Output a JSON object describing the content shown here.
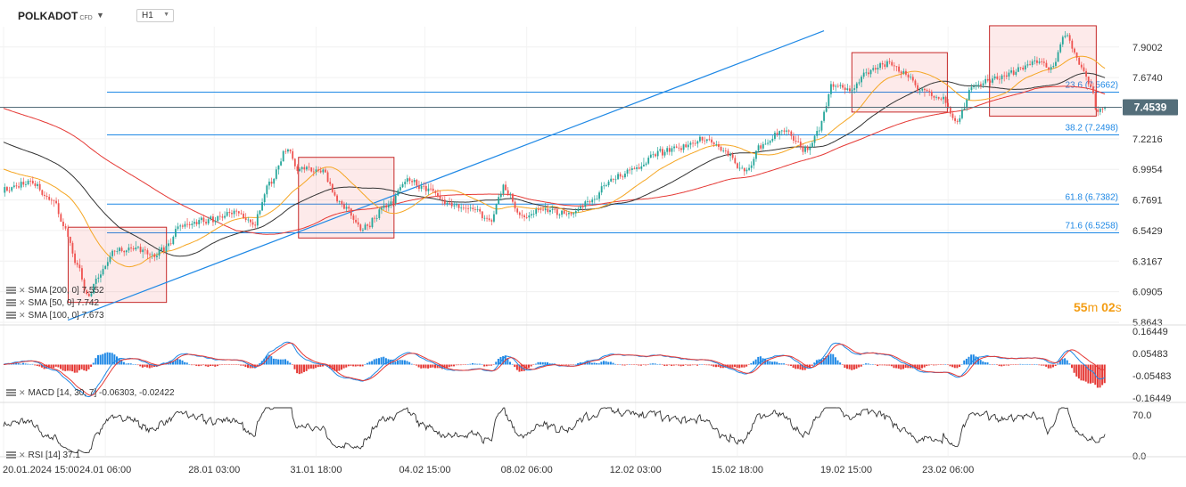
{
  "header": {
    "symbol": "POLKADOT",
    "symbol_tag": "CFD",
    "timeframe": "H1"
  },
  "indicators": {
    "sma200": "SMA [200, 0] 7.552",
    "sma50": "SMA [50, 0] 7.742",
    "sma100": "SMA [100, 0] 7.673",
    "macd": "MACD [14, 30, 7] -0.06303, -0.02422",
    "rsi": "RSI [14] 37.1"
  },
  "countdown": {
    "min": "55",
    "min_unit": "m",
    "sec": "02",
    "sec_unit": "s"
  },
  "colors": {
    "sma200": "#e53935",
    "sma50": "#f5a623",
    "sma100": "#333333",
    "up": "#26a69a",
    "down": "#ef5350",
    "fib": "#1e88e5",
    "box_border": "#c62828",
    "box_fill": "rgba(239,83,80,0.12)",
    "macd_pos": "#1e88e5",
    "macd_neg": "#e53935",
    "current_label_bg": "#546e7a"
  },
  "chart_data": {
    "type": "candlestick",
    "instrument": "POLKADOT",
    "timeframe": "H1",
    "x_ticks": [
      "20.01.2024 15:00",
      "24.01 06:00",
      "28.01 03:00",
      "31.01 18:00",
      "04.02 15:00",
      "08.02 06:00",
      "12.02 03:00",
      "15.02 18:00",
      "19.02 15:00",
      "23.02 06:00"
    ],
    "y_ticks": [
      "7.9002",
      "7.6740",
      "7.4539",
      "7.2216",
      "6.9954",
      "6.7691",
      "6.5429",
      "6.3167",
      "6.0905",
      "5.8643"
    ],
    "ylim": [
      5.8643,
      8.05
    ],
    "current_price": 7.4539,
    "current_price_label": "7.4539",
    "fib_levels": [
      {
        "label": "23.6 (7.5662)",
        "value": 7.5662
      },
      {
        "label": "38.2 (7.2498)",
        "value": 7.2498
      },
      {
        "label": "61.8 (6.7382)",
        "value": 6.7382
      },
      {
        "label": "71.6 (6.5258)",
        "value": 6.5258
      }
    ],
    "trendline": {
      "start": [
        "22.01.2024 22:00",
        5.88
      ],
      "end": [
        "18.02.2024 20:00",
        8.02
      ]
    },
    "anchors": [
      [
        0,
        6.84
      ],
      [
        0.9,
        6.9
      ],
      [
        1.8,
        6.76
      ],
      [
        2.2,
        6.55
      ],
      [
        2.6,
        6.3
      ],
      [
        3.0,
        6.05
      ],
      [
        3.3,
        6.18
      ],
      [
        3.9,
        6.38
      ],
      [
        4.6,
        6.42
      ],
      [
        5.3,
        6.35
      ],
      [
        5.8,
        6.42
      ],
      [
        6.3,
        6.58
      ],
      [
        7.3,
        6.62
      ],
      [
        8.2,
        6.68
      ],
      [
        8.9,
        6.6
      ],
      [
        9.5,
        6.9
      ],
      [
        10.1,
        7.15
      ],
      [
        10.5,
        7.0
      ],
      [
        11.3,
        6.98
      ],
      [
        12.0,
        6.74
      ],
      [
        12.8,
        6.56
      ],
      [
        13.7,
        6.74
      ],
      [
        14.4,
        6.92
      ],
      [
        15.0,
        6.86
      ],
      [
        15.9,
        6.74
      ],
      [
        16.7,
        6.7
      ],
      [
        17.3,
        6.62
      ],
      [
        17.8,
        6.86
      ],
      [
        18.5,
        6.64
      ],
      [
        19.3,
        6.7
      ],
      [
        20.1,
        6.66
      ],
      [
        20.9,
        6.76
      ],
      [
        21.6,
        6.92
      ],
      [
        22.5,
        7.0
      ],
      [
        23.3,
        7.12
      ],
      [
        24.1,
        7.16
      ],
      [
        25.0,
        7.22
      ],
      [
        25.7,
        7.12
      ],
      [
        26.4,
        6.98
      ],
      [
        27.0,
        7.18
      ],
      [
        27.8,
        7.28
      ],
      [
        28.6,
        7.14
      ],
      [
        29.0,
        7.28
      ],
      [
        29.5,
        7.62
      ],
      [
        30.2,
        7.58
      ],
      [
        30.8,
        7.72
      ],
      [
        31.4,
        7.78
      ],
      [
        32.0,
        7.72
      ],
      [
        32.7,
        7.58
      ],
      [
        33.4,
        7.52
      ],
      [
        33.9,
        7.36
      ],
      [
        34.6,
        7.62
      ],
      [
        35.3,
        7.66
      ],
      [
        36.0,
        7.72
      ],
      [
        36.7,
        7.8
      ],
      [
        37.3,
        7.74
      ],
      [
        37.8,
        8.0
      ],
      [
        38.3,
        7.78
      ],
      [
        38.7,
        7.62
      ],
      [
        38.95,
        7.42
      ],
      [
        39.2,
        7.45
      ]
    ],
    "x_scale": "days since 20.01.2024 15:00",
    "sma200_last": 7.552,
    "sma50_last": 7.742,
    "sma100_last": 7.673,
    "macd": {
      "params": "14, 30, 7",
      "macd_last": -0.06303,
      "signal_last": -0.02422,
      "y_ticks": [
        "0.16449",
        "0.05483",
        "-0.05483",
        "-0.16449"
      ]
    },
    "rsi": {
      "period": 14,
      "last": 37.1,
      "y_ticks": [
        "70.0",
        "0.0"
      ]
    }
  }
}
